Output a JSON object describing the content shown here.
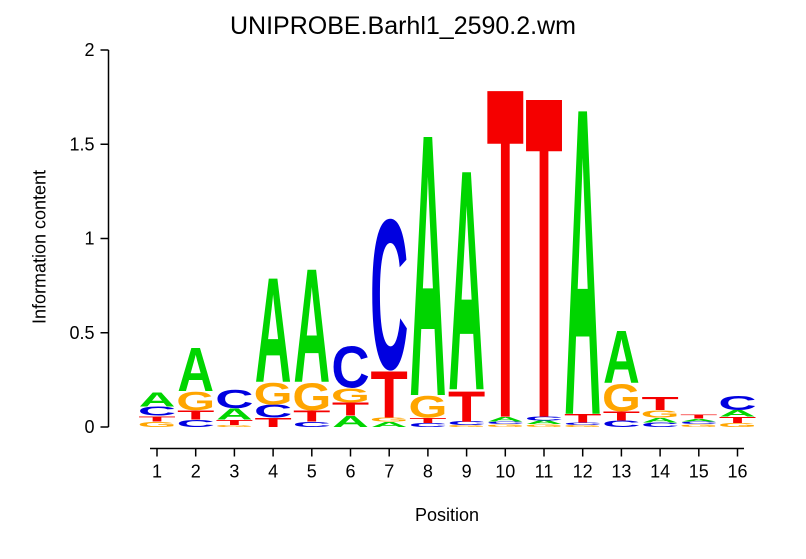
{
  "title": "UNIPROBE.Barhl1_2590.2.wm",
  "y_axis": {
    "label": "Information content",
    "ticks": [
      "0",
      "0.5",
      "1",
      "1.5",
      "2"
    ],
    "range": [
      0,
      2
    ]
  },
  "x_axis": {
    "label": "Position",
    "ticks": [
      "1",
      "2",
      "3",
      "4",
      "5",
      "6",
      "7",
      "8",
      "9",
      "10",
      "11",
      "12",
      "13",
      "14",
      "15",
      "16"
    ]
  },
  "letter_colors": {
    "A": "#00D500",
    "C": "#0000E0",
    "G": "#FFA500",
    "T": "#F50000"
  },
  "chart_data": {
    "type": "sequence-logo",
    "title": "UNIPROBE.Barhl1_2590.2.wm",
    "xlabel": "Position",
    "ylabel": "Information content",
    "ylim": [
      0,
      2
    ],
    "positions": [
      1,
      2,
      3,
      4,
      5,
      6,
      7,
      8,
      9,
      10,
      11,
      12,
      13,
      14,
      15,
      16
    ],
    "stacks": [
      [
        {
          "letter": "A",
          "ic": 0.08
        },
        {
          "letter": "C",
          "ic": 0.05
        },
        {
          "letter": "T",
          "ic": 0.03
        },
        {
          "letter": "G",
          "ic": 0.03
        }
      ],
      [
        {
          "letter": "A",
          "ic": 0.24
        },
        {
          "letter": "G",
          "ic": 0.1
        },
        {
          "letter": "T",
          "ic": 0.05
        },
        {
          "letter": "C",
          "ic": 0.04
        }
      ],
      [
        {
          "letter": "C",
          "ic": 0.1
        },
        {
          "letter": "A",
          "ic": 0.06
        },
        {
          "letter": "T",
          "ic": 0.03
        },
        {
          "letter": "G",
          "ic": 0.01
        }
      ],
      [
        {
          "letter": "A",
          "ic": 0.58
        },
        {
          "letter": "G",
          "ic": 0.12
        },
        {
          "letter": "C",
          "ic": 0.07
        },
        {
          "letter": "T",
          "ic": 0.05
        }
      ],
      [
        {
          "letter": "A",
          "ic": 0.63
        },
        {
          "letter": "G",
          "ic": 0.15
        },
        {
          "letter": "T",
          "ic": 0.06
        },
        {
          "letter": "C",
          "ic": 0.03
        }
      ],
      [
        {
          "letter": "C",
          "ic": 0.23
        },
        {
          "letter": "G",
          "ic": 0.08
        },
        {
          "letter": "T",
          "ic": 0.07
        },
        {
          "letter": "A",
          "ic": 0.06
        }
      ],
      [
        {
          "letter": "C",
          "ic": 0.83
        },
        {
          "letter": "T",
          "ic": 0.26
        },
        {
          "letter": "G",
          "ic": 0.02
        },
        {
          "letter": "A",
          "ic": 0.03
        }
      ],
      [
        {
          "letter": "A",
          "ic": 1.45
        },
        {
          "letter": "G",
          "ic": 0.12
        },
        {
          "letter": "T",
          "ic": 0.03
        },
        {
          "letter": "C",
          "ic": 0.02
        }
      ],
      [
        {
          "letter": "A",
          "ic": 1.22
        },
        {
          "letter": "T",
          "ic": 0.17
        },
        {
          "letter": "C",
          "ic": 0.02
        },
        {
          "letter": "G",
          "ic": 0.01
        }
      ],
      [
        {
          "letter": "T",
          "ic": 1.83
        },
        {
          "letter": "A",
          "ic": 0.025
        },
        {
          "letter": "C",
          "ic": 0.015
        },
        {
          "letter": "G",
          "ic": 0.015
        }
      ],
      [
        {
          "letter": "T",
          "ic": 1.78
        },
        {
          "letter": "C",
          "ic": 0.02
        },
        {
          "letter": "A",
          "ic": 0.02
        },
        {
          "letter": "G",
          "ic": 0.015
        }
      ],
      [
        {
          "letter": "A",
          "ic": 1.7
        },
        {
          "letter": "T",
          "ic": 0.045
        },
        {
          "letter": "C",
          "ic": 0.015
        },
        {
          "letter": "G",
          "ic": 0.01
        }
      ],
      [
        {
          "letter": "A",
          "ic": 0.29
        },
        {
          "letter": "G",
          "ic": 0.15
        },
        {
          "letter": "T",
          "ic": 0.05
        },
        {
          "letter": "C",
          "ic": 0.035
        }
      ],
      [
        {
          "letter": "T",
          "ic": 0.07
        },
        {
          "letter": "G",
          "ic": 0.04
        },
        {
          "letter": "A",
          "ic": 0.025
        },
        {
          "letter": "C",
          "ic": 0.025
        }
      ],
      [
        {
          "letter": "T",
          "ic": 0.02
        },
        {
          "letter": "A",
          "ic": 0.015
        },
        {
          "letter": "C",
          "ic": 0.015
        },
        {
          "letter": "G",
          "ic": 0.015
        }
      ],
      [
        {
          "letter": "C",
          "ic": 0.08
        },
        {
          "letter": "A",
          "ic": 0.035
        },
        {
          "letter": "T",
          "ic": 0.033
        },
        {
          "letter": "G",
          "ic": 0.022
        }
      ]
    ]
  }
}
